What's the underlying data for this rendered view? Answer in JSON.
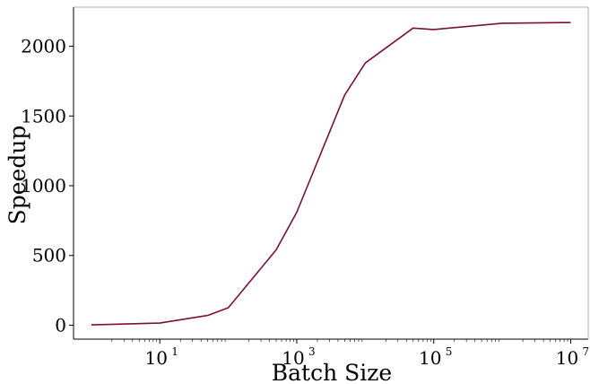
{
  "chart_data": {
    "type": "line",
    "xscale": "log",
    "xlabel": "Batch Size",
    "ylabel": "Speedup",
    "xlim": [
      0.55,
      18000000
    ],
    "ylim": [
      -100,
      2280
    ],
    "x_ticks": [
      {
        "value": 10,
        "base": "10",
        "exp": "1"
      },
      {
        "value": 1000,
        "base": "10",
        "exp": "3"
      },
      {
        "value": 100000,
        "base": "10",
        "exp": "5"
      },
      {
        "value": 10000000,
        "base": "10",
        "exp": "7"
      }
    ],
    "y_ticks": [
      {
        "value": 0,
        "label": "0"
      },
      {
        "value": 500,
        "label": "500"
      },
      {
        "value": 1000,
        "label": "1000"
      },
      {
        "value": 1500,
        "label": "1500"
      },
      {
        "value": 2000,
        "label": "2000"
      }
    ],
    "series": [
      {
        "color": "#7a1038",
        "x": [
          1,
          10,
          50,
          100,
          500,
          1000,
          5000,
          10000,
          50000,
          100000,
          1000000,
          10000000
        ],
        "y": [
          2,
          15,
          70,
          125,
          540,
          810,
          1650,
          1880,
          2130,
          2120,
          2165,
          2170
        ]
      }
    ],
    "grid": false,
    "legend": "none"
  }
}
